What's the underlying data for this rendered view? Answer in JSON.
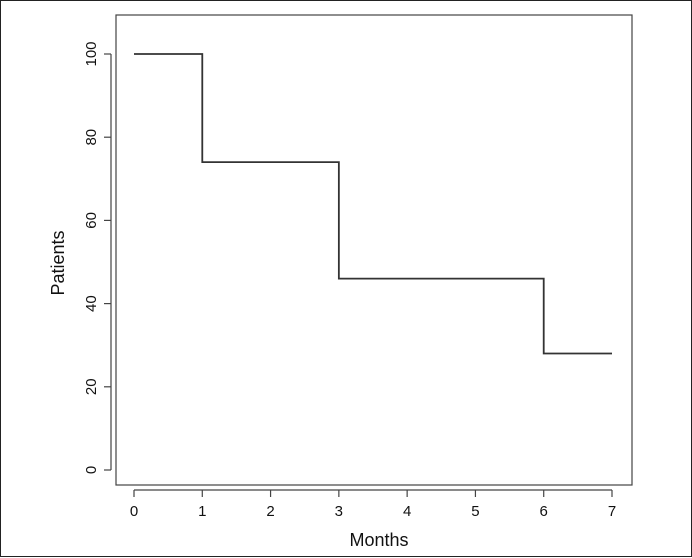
{
  "chart_data": {
    "type": "line",
    "title": "",
    "xlabel": "Months",
    "ylabel": "Patients",
    "xlim": [
      0,
      7
    ],
    "ylim": [
      0,
      100
    ],
    "x_ticks": [
      0,
      1,
      2,
      3,
      4,
      5,
      6,
      7
    ],
    "y_ticks": [
      0,
      20,
      40,
      60,
      80,
      100
    ],
    "x_tick_labels": [
      "0",
      "1",
      "2",
      "3",
      "4",
      "5",
      "6",
      "7"
    ],
    "y_tick_labels": [
      "0",
      "20",
      "40",
      "60",
      "80",
      "100"
    ],
    "step": "post",
    "grid": false,
    "legend": "none",
    "series": [
      {
        "x": [
          0,
          1,
          3,
          6,
          7
        ],
        "y": [
          100,
          74,
          46,
          28,
          28
        ]
      }
    ],
    "colors": {
      "line": "#333333",
      "axis": "#444444",
      "background": "#ffffff"
    }
  }
}
